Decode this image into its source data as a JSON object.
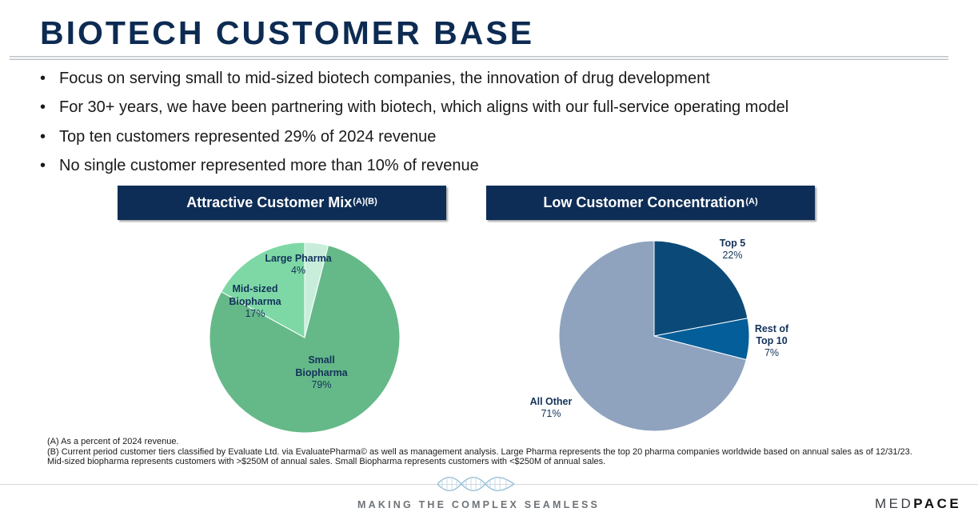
{
  "title": "BIOTECH CUSTOMER BASE",
  "bullets": [
    "Focus on serving small to mid-sized biotech companies, the innovation of drug development",
    "For 30+ years, we have been partnering with biotech, which aligns with our full-service operating model",
    "Top ten customers represented 29% of 2024 revenue",
    "No single customer represented more than 10% of revenue"
  ],
  "bullet_glyph": "•",
  "panels": {
    "left": {
      "title": "Attractive Customer Mix",
      "superscript": "(A)(B)"
    },
    "right": {
      "title": "Low Customer Concentration",
      "superscript": "(A)"
    }
  },
  "chart_data": [
    {
      "type": "pie",
      "title": "Attractive Customer Mix",
      "slices": [
        {
          "label": "Large Pharma",
          "value": 4,
          "value_label": "4%",
          "color": "#c8eedb"
        },
        {
          "label": "Small Biopharma",
          "value": 79,
          "value_label": "79%",
          "color": "#65b988"
        },
        {
          "label": "Mid-sized Biopharma",
          "value": 17,
          "value_label": "17%",
          "color": "#7ed8a5"
        }
      ]
    },
    {
      "type": "pie",
      "title": "Low Customer Concentration",
      "slices": [
        {
          "label": "Top 5",
          "value": 22,
          "value_label": "22%",
          "color": "#0b4a78"
        },
        {
          "label": "Rest of Top 10",
          "value": 7,
          "value_label": "7%",
          "color": "#035e99"
        },
        {
          "label": "All Other",
          "value": 71,
          "value_label": "71%",
          "color": "#8fa3bf"
        }
      ]
    }
  ],
  "footnotes": [
    "(A)  As a percent of 2024 revenue.",
    "(B) Current period customer tiers classified by Evaluate Ltd. via EvaluatePharma© as well as management analysis. Large Pharma represents the top 20 pharma companies worldwide based on annual sales as of 12/31/23. Mid-sized biopharma represents customers with >$250M of annual sales. Small Biopharma represents customers with <$250M of annual sales."
  ],
  "footer": {
    "tagline": "MAKING THE COMPLEX SEAMLESS",
    "logo_part1": "MED",
    "logo_part2": "PACE",
    "dna_icon": "dna-helix-icon"
  }
}
